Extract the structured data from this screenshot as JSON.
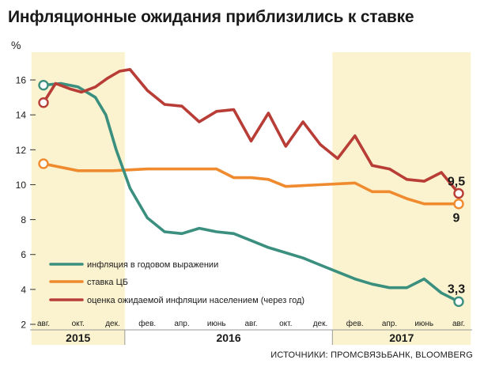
{
  "title": "Инфляционные ожидания приблизились к ставке",
  "source": "ИСТОЧНИКИ: ПРОМСВЯЗЬБАНК, BLOOMBERG",
  "chart_data": {
    "type": "line",
    "ylabel": "%",
    "ylim": [
      2,
      17
    ],
    "yticks": [
      2,
      4,
      6,
      8,
      10,
      12,
      14,
      16
    ],
    "xlim": [
      0,
      24
    ],
    "month_ticks": [
      {
        "x": 0,
        "label": "авг."
      },
      {
        "x": 2,
        "label": "окт."
      },
      {
        "x": 4,
        "label": "дек."
      },
      {
        "x": 6,
        "label": "фев."
      },
      {
        "x": 8,
        "label": "апр."
      },
      {
        "x": 10,
        "label": "июнь"
      },
      {
        "x": 12,
        "label": "авг."
      },
      {
        "x": 14,
        "label": "окт."
      },
      {
        "x": 16,
        "label": "дек."
      },
      {
        "x": 18,
        "label": "фев."
      },
      {
        "x": 20,
        "label": "апр."
      },
      {
        "x": 22,
        "label": "июнь"
      },
      {
        "x": 24,
        "label": "авг."
      }
    ],
    "years": [
      {
        "label": "2015",
        "from": -0.7,
        "to": 4.7,
        "shaded": true
      },
      {
        "label": "2016",
        "from": 4.7,
        "to": 16.7,
        "shaded": false
      },
      {
        "label": "2017",
        "from": 16.7,
        "to": 24.7,
        "shaded": true
      }
    ],
    "grid": false,
    "legend_position": "bottom-left",
    "series": [
      {
        "name": "инфляция в годовом выражении",
        "color": "#3a8f7e",
        "x": [
          0,
          1,
          2,
          3,
          3.6,
          4.2,
          5,
          6,
          7,
          8,
          9,
          10,
          11,
          12,
          13,
          14,
          15,
          16,
          17,
          18,
          19,
          20,
          21,
          22,
          23,
          24
        ],
        "y": [
          15.7,
          15.8,
          15.6,
          15.0,
          14.0,
          12.0,
          9.8,
          8.1,
          7.3,
          7.2,
          7.5,
          7.3,
          7.2,
          6.8,
          6.4,
          6.1,
          5.8,
          5.4,
          5.0,
          4.6,
          4.3,
          4.1,
          4.1,
          4.6,
          3.8,
          3.3
        ],
        "endpoint_label": "3,3"
      },
      {
        "name": "ставка ЦБ",
        "color": "#ef8a2f",
        "x": [
          0,
          2,
          4,
          6,
          8,
          10,
          11,
          12,
          13,
          14,
          16,
          18,
          19,
          20,
          21,
          22,
          23,
          24
        ],
        "y": [
          11.2,
          10.8,
          10.8,
          10.9,
          10.9,
          10.9,
          10.4,
          10.4,
          10.3,
          9.9,
          10.0,
          10.1,
          9.6,
          9.6,
          9.2,
          8.9,
          8.9,
          8.9
        ],
        "endpoint_label": "9"
      },
      {
        "name": "оценка ожидаемой инфляции населением (через год)",
        "color": "#b83d36",
        "x": [
          0,
          0.7,
          1.5,
          2.2,
          3,
          3.7,
          4.4,
          5,
          6,
          7,
          8,
          9,
          10,
          11,
          12,
          13,
          14,
          15,
          16,
          17,
          18,
          19,
          20,
          21,
          22,
          23,
          24
        ],
        "y": [
          14.7,
          15.8,
          15.5,
          15.3,
          15.6,
          16.1,
          16.5,
          16.6,
          15.4,
          14.6,
          14.5,
          13.6,
          14.2,
          14.3,
          12.5,
          14.1,
          12.2,
          13.6,
          12.3,
          11.5,
          12.8,
          11.1,
          10.9,
          10.3,
          10.2,
          10.7,
          9.5
        ],
        "endpoint_label": "9,5"
      }
    ]
  }
}
